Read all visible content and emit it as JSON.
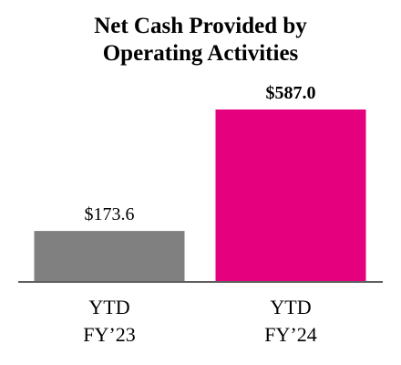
{
  "chart_data": {
    "type": "bar",
    "title_lines": [
      "Net Cash Provided by",
      "Operating Activities"
    ],
    "categories": [
      {
        "line1": "YTD",
        "line2": "FY’23"
      },
      {
        "line1": "YTD",
        "line2": "FY’24"
      }
    ],
    "values": [
      173.6,
      587.0
    ],
    "value_labels": [
      "$173.6",
      "$587.0"
    ],
    "value_label_bold": [
      false,
      true
    ],
    "colors": [
      "#808080",
      "#e5007e"
    ],
    "baseline_color": "#606060",
    "ylim": [
      0,
      587.0
    ],
    "grid": false,
    "legend": "none"
  }
}
